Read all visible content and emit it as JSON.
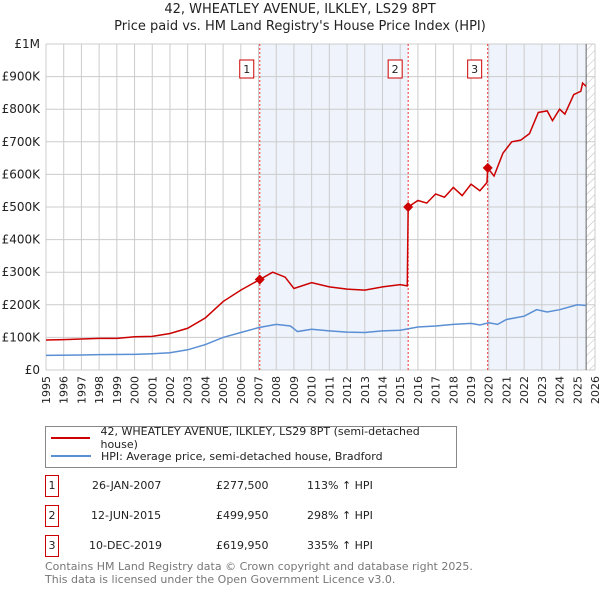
{
  "chart_data": {
    "type": "line",
    "title": "42, WHEATLEY AVENUE, ILKLEY, LS29 8PT",
    "subtitle": "Price paid vs. HM Land Registry's House Price Index (HPI)",
    "xlim": [
      1995,
      2026
    ],
    "ylim": [
      0,
      1000000
    ],
    "y_ticks": [
      {
        "v": 0,
        "label": "£0"
      },
      {
        "v": 100000,
        "label": "£100K"
      },
      {
        "v": 200000,
        "label": "£200K"
      },
      {
        "v": 300000,
        "label": "£300K"
      },
      {
        "v": 400000,
        "label": "£400K"
      },
      {
        "v": 500000,
        "label": "£500K"
      },
      {
        "v": 600000,
        "label": "£600K"
      },
      {
        "v": 700000,
        "label": "£700K"
      },
      {
        "v": 800000,
        "label": "£800K"
      },
      {
        "v": 900000,
        "label": "£900K"
      },
      {
        "v": 1000000,
        "label": "£1M"
      }
    ],
    "x_ticks": [
      "1995",
      "1996",
      "1997",
      "1998",
      "1999",
      "2000",
      "2001",
      "2002",
      "2003",
      "2004",
      "2005",
      "2006",
      "2007",
      "2008",
      "2009",
      "2010",
      "2011",
      "2012",
      "2013",
      "2014",
      "2015",
      "2016",
      "2017",
      "2018",
      "2019",
      "2020",
      "2021",
      "2022",
      "2023",
      "2024",
      "2025",
      "2026"
    ],
    "grid": true,
    "shaded_ranges": [
      [
        2007.07,
        2015.45
      ],
      [
        2019.94,
        2025.5
      ]
    ],
    "hatched_from": 2025.5,
    "series": [
      {
        "name": "42, WHEATLEY AVENUE, ILKLEY, LS29 8PT (semi-detached house)",
        "color": "#cc0000",
        "points": [
          [
            1995,
            92000
          ],
          [
            1996,
            93000
          ],
          [
            1997,
            95000
          ],
          [
            1998,
            97000
          ],
          [
            1999,
            97000
          ],
          [
            2000,
            102000
          ],
          [
            2001,
            103000
          ],
          [
            2002,
            112000
          ],
          [
            2003,
            128000
          ],
          [
            2004,
            160000
          ],
          [
            2005,
            210000
          ],
          [
            2006,
            245000
          ],
          [
            2007.07,
            277500
          ],
          [
            2007.8,
            300000
          ],
          [
            2008.5,
            285000
          ],
          [
            2009,
            250000
          ],
          [
            2010,
            268000
          ],
          [
            2011,
            255000
          ],
          [
            2012,
            248000
          ],
          [
            2013,
            245000
          ],
          [
            2014,
            255000
          ],
          [
            2015,
            262000
          ],
          [
            2015.4,
            258000
          ],
          [
            2015.45,
            499950
          ],
          [
            2016,
            520000
          ],
          [
            2016.5,
            512000
          ],
          [
            2017,
            540000
          ],
          [
            2017.5,
            530000
          ],
          [
            2018,
            560000
          ],
          [
            2018.5,
            535000
          ],
          [
            2019,
            570000
          ],
          [
            2019.5,
            550000
          ],
          [
            2019.9,
            575000
          ],
          [
            2019.94,
            619950
          ],
          [
            2020.3,
            595000
          ],
          [
            2020.8,
            665000
          ],
          [
            2021.3,
            700000
          ],
          [
            2021.8,
            705000
          ],
          [
            2022.3,
            725000
          ],
          [
            2022.8,
            790000
          ],
          [
            2023.3,
            795000
          ],
          [
            2023.6,
            765000
          ],
          [
            2024,
            800000
          ],
          [
            2024.3,
            785000
          ],
          [
            2024.8,
            845000
          ],
          [
            2025.2,
            855000
          ],
          [
            2025.3,
            880000
          ],
          [
            2025.5,
            870000
          ]
        ]
      },
      {
        "name": "HPI: Average price, semi-detached house, Bradford",
        "color": "#5b8fd4",
        "points": [
          [
            1995,
            45000
          ],
          [
            1997,
            46000
          ],
          [
            1998,
            47000
          ],
          [
            2000,
            48000
          ],
          [
            2001,
            50000
          ],
          [
            2002,
            53000
          ],
          [
            2003,
            62000
          ],
          [
            2004,
            78000
          ],
          [
            2005,
            100000
          ],
          [
            2006,
            115000
          ],
          [
            2007,
            130000
          ],
          [
            2008,
            140000
          ],
          [
            2008.8,
            135000
          ],
          [
            2009.2,
            118000
          ],
          [
            2010,
            125000
          ],
          [
            2011,
            120000
          ],
          [
            2012,
            116000
          ],
          [
            2013,
            115000
          ],
          [
            2014,
            120000
          ],
          [
            2015,
            122000
          ],
          [
            2016,
            132000
          ],
          [
            2017,
            135000
          ],
          [
            2018,
            140000
          ],
          [
            2019,
            143000
          ],
          [
            2019.5,
            138000
          ],
          [
            2020,
            145000
          ],
          [
            2020.5,
            140000
          ],
          [
            2021,
            155000
          ],
          [
            2022,
            165000
          ],
          [
            2022.7,
            185000
          ],
          [
            2023.3,
            178000
          ],
          [
            2024,
            185000
          ],
          [
            2025,
            200000
          ],
          [
            2025.5,
            198000
          ]
        ]
      }
    ],
    "sales": [
      {
        "n": "1",
        "x": 2007.07,
        "date": "26-JAN-2007",
        "price": 277500,
        "price_label": "£277,500",
        "hpi": "113% ↑ HPI"
      },
      {
        "n": "2",
        "x": 2015.45,
        "date": "12-JUN-2015",
        "price": 499950,
        "price_label": "£499,950",
        "hpi": "298% ↑ HPI"
      },
      {
        "n": "3",
        "x": 2019.94,
        "date": "10-DEC-2019",
        "price": 619950,
        "price_label": "£619,950",
        "hpi": "335% ↑ HPI"
      }
    ]
  },
  "footer": {
    "line1": "Contains HM Land Registry data © Crown copyright and database right 2025.",
    "line2": "This data is licensed under the Open Government Licence v3.0."
  }
}
